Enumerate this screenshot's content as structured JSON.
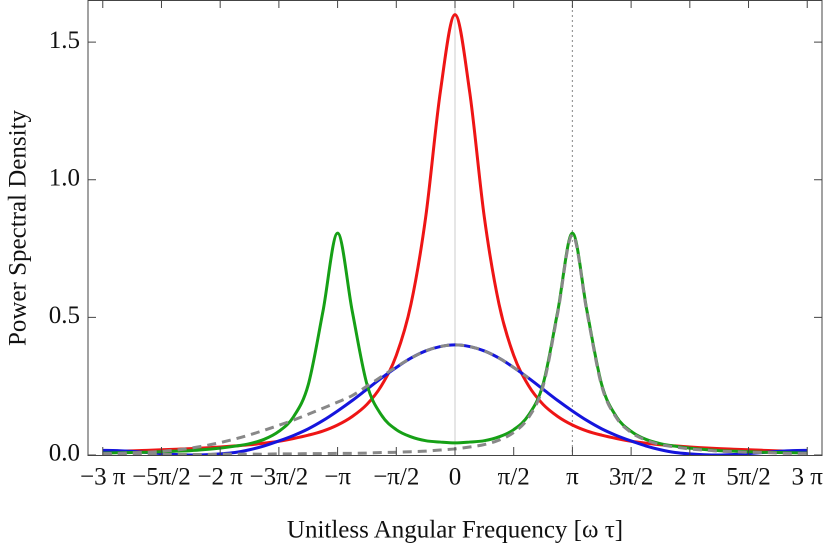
{
  "chart_data": {
    "type": "line",
    "x_label": "Unitless Angular Frequency [ω τ]",
    "y_label": "Power Spectral Density",
    "x": [
      -9.4248,
      -9.0321,
      -8.6394,
      -8.2467,
      -7.854,
      -7.4613,
      -7.0686,
      -6.6759,
      -6.2832,
      -5.8905,
      -5.4978,
      -5.1051,
      -4.7124,
      -4.3197,
      -3.927,
      -3.5343,
      -3.1416,
      -2.7489,
      -2.3562,
      -1.9635,
      -1.5708,
      -1.1781,
      -0.7854,
      -0.3927,
      0,
      0.3927,
      0.7854,
      1.1781,
      1.5708,
      1.9635,
      2.3562,
      2.7489,
      3.1416,
      3.5343,
      3.927,
      4.3197,
      4.7124,
      5.1051,
      5.4978,
      5.8905,
      6.2832,
      6.6759,
      7.0686,
      7.4613,
      7.854,
      8.2467,
      8.6394,
      9.0321,
      9.4248
    ],
    "series": [
      {
        "color": "#ee1515",
        "style": "solid",
        "values": [
          0.013,
          0.014,
          0.015,
          0.017,
          0.019,
          0.021,
          0.023,
          0.026,
          0.029,
          0.033,
          0.037,
          0.043,
          0.05,
          0.06,
          0.072,
          0.087,
          0.109,
          0.14,
          0.184,
          0.253,
          0.362,
          0.548,
          0.863,
          1.319,
          1.6,
          1.319,
          0.863,
          0.548,
          0.362,
          0.253,
          0.184,
          0.14,
          0.109,
          0.087,
          0.072,
          0.06,
          0.05,
          0.043,
          0.037,
          0.033,
          0.029,
          0.026,
          0.023,
          0.021,
          0.019,
          0.017,
          0.015,
          0.014,
          0.013
        ]
      },
      {
        "color": "#1515dd",
        "style": "solid",
        "values": [
          0.017,
          0.016,
          0.013,
          0.009,
          0.005,
          0.002,
          0,
          0.001,
          0.004,
          0.009,
          0.019,
          0.033,
          0.051,
          0.071,
          0.095,
          0.125,
          0.16,
          0.198,
          0.239,
          0.28,
          0.318,
          0.352,
          0.378,
          0.394,
          0.4,
          0.394,
          0.378,
          0.352,
          0.318,
          0.28,
          0.239,
          0.198,
          0.16,
          0.125,
          0.095,
          0.071,
          0.051,
          0.033,
          0.019,
          0.009,
          0.004,
          0.001,
          0,
          0.002,
          0.005,
          0.009,
          0.013,
          0.016,
          0.017
        ]
      },
      {
        "color": "#16a016",
        "style": "solid",
        "values": [
          0.007,
          0.008,
          0.009,
          0.01,
          0.012,
          0.014,
          0.016,
          0.02,
          0.025,
          0.032,
          0.041,
          0.057,
          0.086,
          0.139,
          0.255,
          0.521,
          0.806,
          0.522,
          0.257,
          0.144,
          0.092,
          0.066,
          0.052,
          0.047,
          0.044,
          0.047,
          0.052,
          0.066,
          0.092,
          0.144,
          0.257,
          0.522,
          0.806,
          0.521,
          0.255,
          0.139,
          0.086,
          0.057,
          0.041,
          0.032,
          0.025,
          0.02,
          0.016,
          0.014,
          0.012,
          0.01,
          0.009,
          0.008,
          0.007
        ]
      },
      {
        "color": "#888888",
        "style": "dashed",
        "values": [
          0.005,
          0.006,
          0.008,
          0.01,
          0.013,
          0.018,
          0.025,
          0.034,
          0.045,
          0.058,
          0.073,
          0.09,
          0.108,
          0.127,
          0.148,
          0.17,
          0.192,
          0.216,
          0.25,
          0.285,
          0.32,
          0.352,
          0.378,
          0.394,
          0.4,
          0.394,
          0.378,
          0.352,
          0.318,
          0.28,
          null,
          null,
          null,
          null,
          null,
          null,
          null,
          null,
          null,
          null,
          null,
          null,
          null,
          null,
          null,
          null,
          null,
          null,
          null
        ]
      },
      {
        "color": "#888888",
        "style": "dashed",
        "values": [
          0.001,
          0.002,
          0.002,
          0.002,
          0.002,
          0.002,
          0.002,
          0.002,
          0.003,
          0.003,
          0.003,
          0.003,
          0.004,
          0.004,
          0.005,
          0.005,
          0.006,
          0.006,
          0.007,
          0.009,
          0.01,
          0.012,
          0.014,
          0.018,
          0.022,
          0.029,
          0.038,
          0.054,
          0.082,
          0.135,
          0.25,
          0.516,
          0.8,
          0.516,
          0.25,
          0.135,
          0.082,
          0.054,
          0.038,
          0.029,
          0.022,
          0.018,
          0.014,
          0.012,
          0.01,
          0.009,
          0.007,
          0.006,
          0.006
        ]
      }
    ],
    "vline_x": 3.1416,
    "xlim": [
      -9.82,
      9.82
    ],
    "ylim": [
      0,
      1.653
    ],
    "xticks": [
      {
        "value": -9.4248,
        "label": "−3 π"
      },
      {
        "value": -7.854,
        "label": "−5π/2"
      },
      {
        "value": -6.2832,
        "label": "−2 π"
      },
      {
        "value": -4.7124,
        "label": "−3π/2"
      },
      {
        "value": -3.1416,
        "label": "−π"
      },
      {
        "value": -1.5708,
        "label": "−π/2"
      },
      0,
      {
        "value": 1.5708,
        "label": "π/2"
      },
      {
        "value": 3.1416,
        "label": "π"
      },
      {
        "value": 4.7124,
        "label": "3π/2"
      },
      {
        "value": 6.2832,
        "label": "2 π"
      },
      {
        "value": 7.854,
        "label": "5π/2"
      },
      {
        "value": 9.4248,
        "label": "3 π"
      }
    ],
    "yticks": [
      {
        "value": 0,
        "label": "0.0"
      },
      0.5,
      {
        "value": 1,
        "label": "1.0"
      },
      1.5
    ]
  }
}
